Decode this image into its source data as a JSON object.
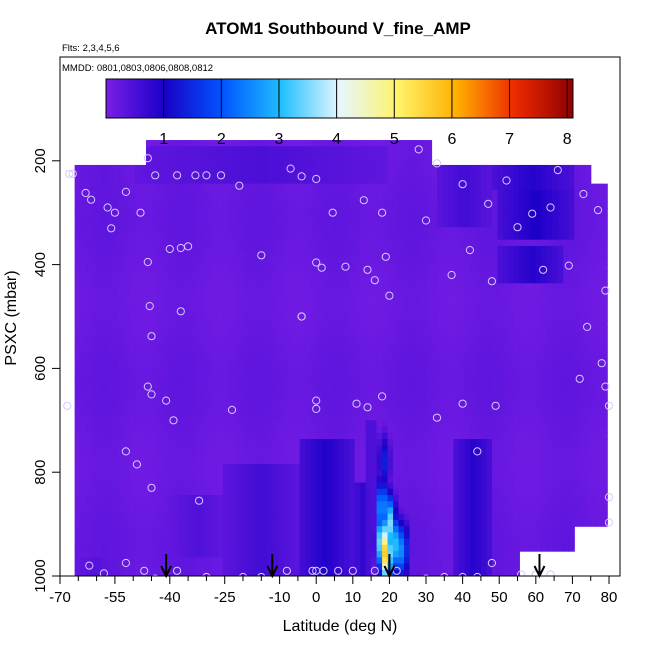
{
  "chart_data": {
    "type": "heatmap",
    "title": "ATOM1 Southbound V_fine_AMP",
    "subtitle_flights": "Flts: 2,3,4,5,6",
    "subtitle_dates": "MMDD: 0801,0803,0806,0808,0812",
    "xlabel": "Latitude (deg N)",
    "ylabel": "PSXC (mbar)",
    "xlim": [
      -70,
      83
    ],
    "ylim": [
      1000,
      0
    ],
    "x_ticks": [
      -70,
      -55,
      -40,
      -25,
      -10,
      0,
      10,
      20,
      30,
      40,
      50,
      60,
      70,
      80
    ],
    "x_tick_labels": [
      "-70",
      "-55",
      "-40",
      "-25",
      "-10",
      "0",
      "10",
      "20",
      "30",
      "40",
      "50",
      "60",
      "70",
      "80"
    ],
    "x_minor_ticks": [
      -65,
      -60,
      -50,
      -45,
      -35,
      -30,
      -20,
      -15,
      -5,
      5,
      15,
      25,
      35,
      45,
      55,
      65,
      75
    ],
    "y_ticks": [
      200,
      400,
      600,
      800,
      1000
    ],
    "y_tick_labels": [
      "200",
      "400",
      "600",
      "800",
      "1000"
    ],
    "colorbar": {
      "min": 0,
      "max": 8.1,
      "ticks": [
        1,
        2,
        3,
        4,
        5,
        6,
        7,
        8
      ],
      "tick_labels": [
        "1",
        "2",
        "3",
        "4",
        "5",
        "6",
        "7",
        "8"
      ],
      "colors": [
        "#7a1ee6",
        "#1a00c8",
        "#0055ff",
        "#20bfff",
        "#e6f6ff",
        "#fff36a",
        "#ffb000",
        "#ee2a00",
        "#8e0000"
      ]
    },
    "field_description_values": {
      "background_value": 0.2,
      "data_extent": {
        "lat_min": -66,
        "lat_max": 80,
        "p_top": 160,
        "p_bottom": 1000
      }
    },
    "data_regions": [
      {
        "lat": [
          -66,
          -50
        ],
        "p": [
          160,
          260
        ],
        "value": 0.3
      },
      {
        "lat": [
          -50,
          20
        ],
        "p": [
          170,
          240
        ],
        "value": 0.5
      },
      {
        "lat": [
          33,
          48
        ],
        "p": [
          210,
          330
        ],
        "value": 0.6
      },
      {
        "lat": [
          48,
          70
        ],
        "p": [
          210,
          260
        ],
        "value": 0.9
      },
      {
        "lat": [
          50,
          70
        ],
        "p": [
          260,
          350
        ],
        "value": 1.0
      },
      {
        "lat": [
          50,
          68
        ],
        "p": [
          370,
          430
        ],
        "value": 0.9
      },
      {
        "lat": [
          -40,
          -25
        ],
        "p": [
          840,
          960
        ],
        "value": 0.45
      },
      {
        "lat": [
          -25,
          -5
        ],
        "p": [
          780,
          1000
        ],
        "value": 0.6
      },
      {
        "lat": [
          -5,
          10
        ],
        "p": [
          740,
          1000
        ],
        "value": 0.95
      },
      {
        "lat": [
          10,
          15
        ],
        "p": [
          820,
          1000
        ],
        "value": 0.8
      },
      {
        "lat": [
          14,
          16
        ],
        "p": [
          700,
          960
        ],
        "value": 0.7
      },
      {
        "lat": [
          38,
          48
        ],
        "p": [
          740,
          1000
        ],
        "value": 0.9
      },
      {
        "lat": [
          -66,
          -55
        ],
        "p": [
          960,
          1000
        ],
        "value": 0.4
      }
    ],
    "plume_peaks": [
      {
        "lat": 18.2,
        "p": 935,
        "value": 4.6
      },
      {
        "lat": 19.0,
        "p": 955,
        "value": 5.8
      },
      {
        "lat": 20.0,
        "p": 900,
        "value": 3.6
      },
      {
        "lat": 21.5,
        "p": 940,
        "value": 3.1
      },
      {
        "lat": 23.5,
        "p": 950,
        "value": 2.6
      },
      {
        "lat": 18.0,
        "p": 870,
        "value": 2.9
      },
      {
        "lat": 18.6,
        "p": 780,
        "value": 1.4
      }
    ],
    "sample_points": [
      [
        -67.5,
        225
      ],
      [
        -66.5,
        225
      ],
      [
        -63,
        262
      ],
      [
        -61.5,
        275
      ],
      [
        -57,
        290
      ],
      [
        -55,
        300
      ],
      [
        -56,
        330
      ],
      [
        -52,
        260
      ],
      [
        -48,
        300
      ],
      [
        -46,
        195
      ],
      [
        -44,
        228
      ],
      [
        -40,
        370
      ],
      [
        -38,
        228
      ],
      [
        -35,
        365
      ],
      [
        -33,
        228
      ],
      [
        -30,
        228
      ],
      [
        -26,
        228
      ],
      [
        -21,
        248
      ],
      [
        -15,
        382
      ],
      [
        -7,
        215
      ],
      [
        -4,
        230
      ],
      [
        -4,
        500
      ],
      [
        0,
        235
      ],
      [
        0,
        396
      ],
      [
        1.5,
        406
      ],
      [
        4.5,
        300
      ],
      [
        8,
        404
      ],
      [
        13,
        276
      ],
      [
        14,
        410
      ],
      [
        16,
        430
      ],
      [
        18,
        300
      ],
      [
        20,
        460
      ],
      [
        19,
        385
      ],
      [
        30,
        315
      ],
      [
        28,
        178
      ],
      [
        33,
        205
      ],
      [
        37,
        420
      ],
      [
        40,
        245
      ],
      [
        42,
        372
      ],
      [
        47,
        283
      ],
      [
        48,
        432
      ],
      [
        52,
        238
      ],
      [
        55,
        328
      ],
      [
        59,
        302
      ],
      [
        62,
        410
      ],
      [
        64,
        290
      ],
      [
        66,
        218
      ],
      [
        69,
        402
      ],
      [
        73,
        264
      ],
      [
        77,
        295
      ],
      [
        79,
        450
      ],
      [
        -46,
        395
      ],
      [
        -45.5,
        480
      ],
      [
        -45,
        538
      ],
      [
        -37,
        490
      ],
      [
        -37,
        368
      ],
      [
        -68,
        672
      ],
      [
        -46,
        635
      ],
      [
        -45,
        650
      ],
      [
        -41,
        662
      ],
      [
        -39,
        700
      ],
      [
        -23,
        680
      ],
      [
        -4,
        500
      ],
      [
        0,
        662
      ],
      [
        0,
        678
      ],
      [
        14,
        675
      ],
      [
        11,
        668
      ],
      [
        18,
        654
      ],
      [
        33,
        695
      ],
      [
        40,
        668
      ],
      [
        44,
        760
      ],
      [
        49,
        672
      ],
      [
        74,
        520
      ],
      [
        78,
        590
      ],
      [
        79,
        635
      ],
      [
        80,
        672
      ],
      [
        80,
        848
      ],
      [
        80,
        897
      ],
      [
        72,
        620
      ],
      [
        -52,
        760
      ],
      [
        -49,
        785
      ],
      [
        -45,
        830
      ],
      [
        -32,
        855
      ],
      [
        -30,
        1002
      ],
      [
        -20,
        1002
      ],
      [
        -15,
        1002
      ],
      [
        -8,
        990
      ],
      [
        -1,
        990
      ],
      [
        0,
        990
      ],
      [
        2,
        990
      ],
      [
        6,
        990
      ],
      [
        10,
        990
      ],
      [
        16,
        990
      ],
      [
        22,
        990
      ],
      [
        30,
        1005
      ],
      [
        35,
        1002
      ],
      [
        40,
        1002
      ],
      [
        44,
        1002
      ],
      [
        48,
        975
      ],
      [
        56,
        997
      ],
      [
        60,
        997
      ],
      [
        64,
        997
      ],
      [
        -62,
        980
      ],
      [
        -58,
        995
      ],
      [
        -52,
        975
      ],
      [
        -47,
        990
      ],
      [
        -44,
        1005
      ],
      [
        -38,
        990
      ]
    ],
    "arrows_lat": [
      -41,
      -12,
      20,
      61
    ]
  }
}
